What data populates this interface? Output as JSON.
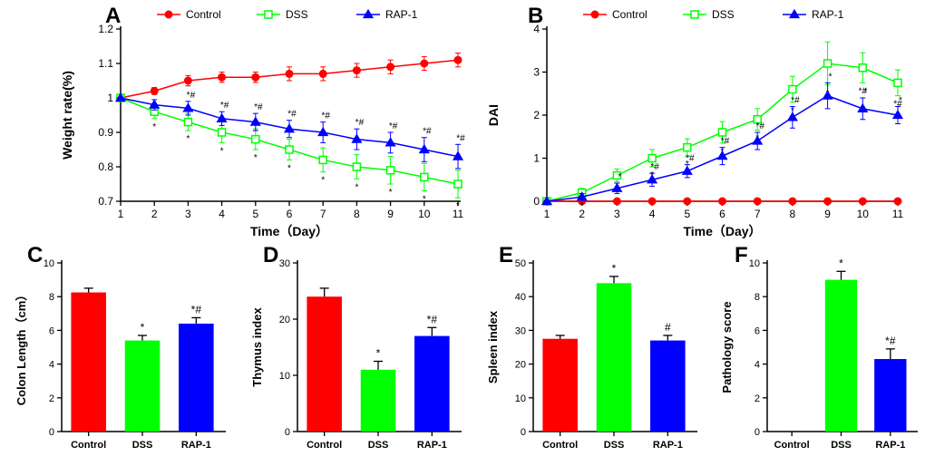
{
  "colors": {
    "control": "#ff0000",
    "dss": "#00ff00",
    "rap1": "#0000ff",
    "axis": "#000000",
    "text": "#000000",
    "bg": "#ffffff"
  },
  "series_labels": {
    "control": "Control",
    "dss": "DSS",
    "rap1": "RAP-1"
  },
  "panel_labels": {
    "A": "A",
    "B": "B",
    "C": "C",
    "D": "D",
    "E": "E",
    "F": "F"
  },
  "panelA": {
    "type": "line",
    "xlabel": "Time（Day）",
    "ylabel": "Weight rate(%)",
    "xlim": [
      1,
      11
    ],
    "ylim": [
      0.7,
      1.2
    ],
    "xticks": [
      1,
      2,
      3,
      4,
      5,
      6,
      7,
      8,
      9,
      10,
      11
    ],
    "yticks": [
      0.7,
      0.8,
      0.9,
      1.0,
      1.1,
      1.2
    ],
    "label_fontsize": 14,
    "tick_fontsize": 12,
    "legend_fontsize": 12,
    "marker_size": 4,
    "line_width": 1.5,
    "err_cap": 3,
    "series": {
      "control": {
        "x": [
          1,
          2,
          3,
          4,
          5,
          6,
          7,
          8,
          9,
          10,
          11
        ],
        "y": [
          1.0,
          1.02,
          1.05,
          1.06,
          1.06,
          1.07,
          1.07,
          1.08,
          1.09,
          1.1,
          1.11
        ],
        "err": [
          0.0,
          0.01,
          0.015,
          0.015,
          0.015,
          0.02,
          0.02,
          0.02,
          0.02,
          0.02,
          0.02
        ],
        "marker": "circle"
      },
      "dss": {
        "x": [
          1,
          2,
          3,
          4,
          5,
          6,
          7,
          8,
          9,
          10,
          11
        ],
        "y": [
          1.0,
          0.96,
          0.93,
          0.9,
          0.88,
          0.85,
          0.82,
          0.8,
          0.79,
          0.77,
          0.75
        ],
        "err": [
          0.0,
          0.02,
          0.025,
          0.03,
          0.03,
          0.03,
          0.035,
          0.035,
          0.04,
          0.04,
          0.04
        ],
        "marker": "square",
        "sig": [
          "",
          "*",
          "*",
          "*",
          "*",
          "*",
          "*",
          "*",
          "*",
          "*",
          "*"
        ]
      },
      "rap1": {
        "x": [
          1,
          2,
          3,
          4,
          5,
          6,
          7,
          8,
          9,
          10,
          11
        ],
        "y": [
          1.0,
          0.98,
          0.97,
          0.94,
          0.93,
          0.91,
          0.9,
          0.88,
          0.87,
          0.85,
          0.83
        ],
        "err": [
          0.0,
          0.015,
          0.02,
          0.02,
          0.025,
          0.025,
          0.03,
          0.03,
          0.03,
          0.035,
          0.035
        ],
        "marker": "triangle",
        "sig": [
          "",
          "",
          "*#",
          "*#",
          "*#",
          "*#",
          "*#",
          "*#",
          "*#",
          "*#",
          "*#"
        ]
      }
    }
  },
  "panelB": {
    "type": "line",
    "xlabel": "Time（Day）",
    "ylabel": "DAI",
    "xlim": [
      1,
      11
    ],
    "ylim": [
      0,
      4
    ],
    "xticks": [
      1,
      2,
      3,
      4,
      5,
      6,
      7,
      8,
      9,
      10,
      11
    ],
    "yticks": [
      0,
      1,
      2,
      3,
      4
    ],
    "label_fontsize": 14,
    "tick_fontsize": 12,
    "legend_fontsize": 12,
    "marker_size": 4,
    "line_width": 1.5,
    "err_cap": 3,
    "series": {
      "control": {
        "x": [
          1,
          2,
          3,
          4,
          5,
          6,
          7,
          8,
          9,
          10,
          11
        ],
        "y": [
          0,
          0,
          0,
          0,
          0,
          0,
          0,
          0,
          0,
          0,
          0
        ],
        "err": [
          0,
          0,
          0,
          0,
          0,
          0,
          0,
          0,
          0,
          0,
          0
        ],
        "marker": "circle"
      },
      "dss": {
        "x": [
          1,
          2,
          3,
          4,
          5,
          6,
          7,
          8,
          9,
          10,
          11
        ],
        "y": [
          0,
          0.2,
          0.6,
          1.0,
          1.25,
          1.6,
          1.9,
          2.6,
          3.2,
          3.1,
          2.75
        ],
        "err": [
          0,
          0.1,
          0.15,
          0.2,
          0.2,
          0.25,
          0.25,
          0.3,
          0.5,
          0.35,
          0.3
        ],
        "marker": "square",
        "sig": [
          "",
          "*",
          "*",
          "*",
          "*",
          "*",
          "*",
          "*",
          "*",
          "*#",
          "*#"
        ]
      },
      "rap1": {
        "x": [
          1,
          2,
          3,
          4,
          5,
          6,
          7,
          8,
          9,
          10,
          11
        ],
        "y": [
          0,
          0.1,
          0.3,
          0.5,
          0.7,
          1.05,
          1.4,
          1.95,
          2.45,
          2.15,
          2.0
        ],
        "err": [
          0,
          0.08,
          0.12,
          0.15,
          0.15,
          0.2,
          0.2,
          0.25,
          0.3,
          0.25,
          0.2
        ],
        "marker": "triangle",
        "sig": [
          "",
          "",
          "*",
          "*#",
          "*#",
          "*#",
          "*#",
          "*#",
          "*",
          "*",
          "*"
        ]
      }
    }
  },
  "panelC": {
    "type": "bar",
    "ylabel": "Colon Length（cm）",
    "ylim": [
      0,
      10
    ],
    "yticks": [
      0,
      2,
      4,
      6,
      8,
      10
    ],
    "label_fontsize": 13,
    "tick_fontsize": 11,
    "bar_width": 0.65,
    "err_cap": 5,
    "categories": [
      "Control",
      "DSS",
      "RAP-1"
    ],
    "values": [
      8.25,
      5.4,
      6.4
    ],
    "err": [
      0.25,
      0.3,
      0.35
    ],
    "colors": [
      "#ff0000",
      "#00ff00",
      "#0000ff"
    ],
    "sig": [
      "",
      "*",
      "*#"
    ]
  },
  "panelD": {
    "type": "bar",
    "ylabel": "Thymus index",
    "ylim": [
      0,
      30
    ],
    "yticks": [
      0,
      10,
      20,
      30
    ],
    "label_fontsize": 13,
    "tick_fontsize": 11,
    "bar_width": 0.65,
    "err_cap": 5,
    "categories": [
      "Control",
      "DSS",
      "RAP-1"
    ],
    "values": [
      24,
      11,
      17
    ],
    "err": [
      1.5,
      1.5,
      1.5
    ],
    "colors": [
      "#ff0000",
      "#00ff00",
      "#0000ff"
    ],
    "sig": [
      "",
      "*",
      "*#"
    ]
  },
  "panelE": {
    "type": "bar",
    "ylabel": "Spleen index",
    "ylim": [
      0,
      50
    ],
    "yticks": [
      0,
      10,
      20,
      30,
      40,
      50
    ],
    "label_fontsize": 13,
    "tick_fontsize": 11,
    "bar_width": 0.65,
    "err_cap": 5,
    "categories": [
      "Control",
      "DSS",
      "RAP-1"
    ],
    "values": [
      27.5,
      44,
      27
    ],
    "err": [
      1.0,
      2.0,
      1.5
    ],
    "colors": [
      "#ff0000",
      "#00ff00",
      "#0000ff"
    ],
    "sig": [
      "",
      "*",
      "#"
    ]
  },
  "panelF": {
    "type": "bar",
    "ylabel": "Pathology score",
    "ylim": [
      0,
      10
    ],
    "yticks": [
      0,
      2,
      4,
      6,
      8,
      10
    ],
    "label_fontsize": 13,
    "tick_fontsize": 11,
    "bar_width": 0.65,
    "err_cap": 5,
    "categories": [
      "Control",
      "DSS",
      "RAP-1"
    ],
    "values": [
      0,
      9,
      4.3
    ],
    "err": [
      0,
      0.5,
      0.6
    ],
    "colors": [
      "#ff0000",
      "#00ff00",
      "#0000ff"
    ],
    "sig": [
      "",
      "*",
      "*#"
    ]
  }
}
